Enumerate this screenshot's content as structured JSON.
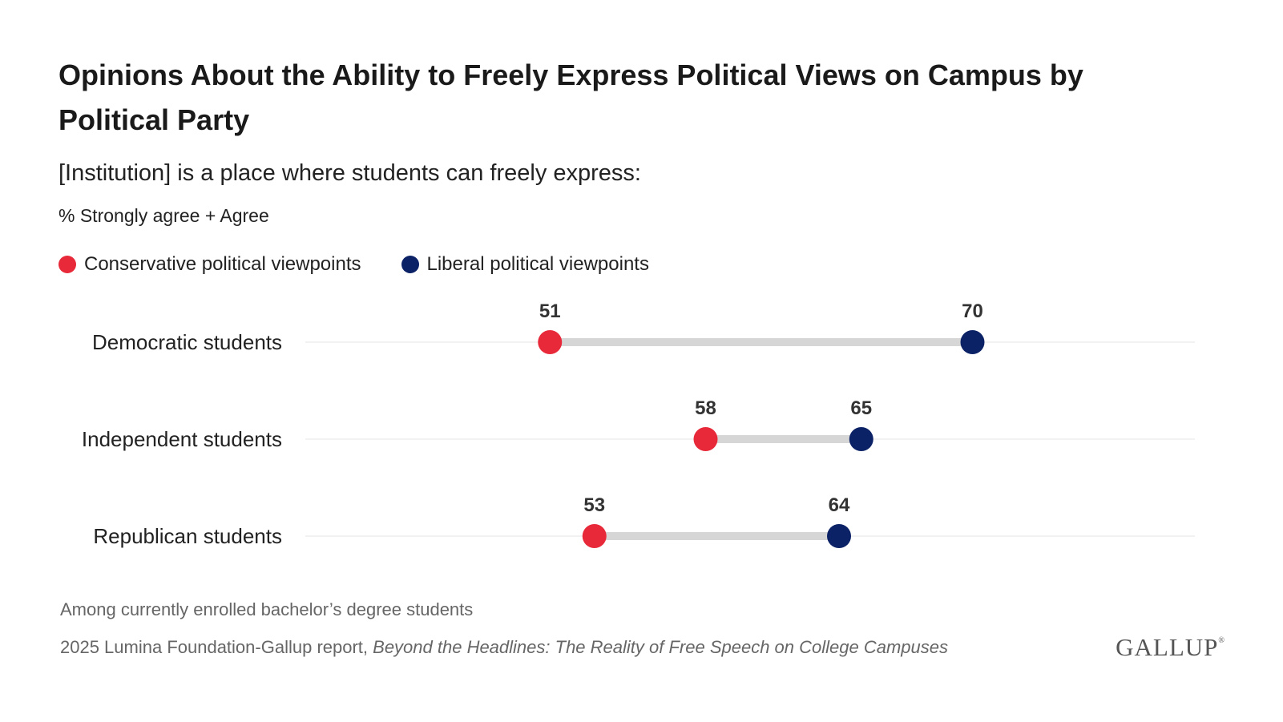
{
  "title": "Opinions About the Ability to Freely Express Political Views on Campus by Political Party",
  "subtitle": "[Institution] is a place where students can freely express:",
  "measure": "% Strongly agree + Agree",
  "legend": [
    {
      "label": "Conservative political viewpoints",
      "color": "#e8293a"
    },
    {
      "label": "Liberal political viewpoints",
      "color": "#0c2266"
    }
  ],
  "chart_data": {
    "type": "dumbbell",
    "categories": [
      "Democratic students",
      "Independent students",
      "Republican students"
    ],
    "series": [
      {
        "name": "Conservative political viewpoints",
        "color": "#e8293a",
        "values": [
          51,
          58,
          53
        ]
      },
      {
        "name": "Liberal political viewpoints",
        "color": "#0c2266",
        "values": [
          70,
          65,
          64
        ]
      }
    ],
    "xlim": [
      40,
      80
    ],
    "grid": false,
    "connector_color": "#d6d6d6"
  },
  "footer": {
    "note": "Among currently enrolled bachelor’s degree students",
    "source_prefix": "2025 Lumina Foundation-Gallup report, ",
    "source_title": "Beyond the Headlines: The Reality of Free Speech on College Campuses",
    "brand": "GALLUP",
    "brand_mark": "®"
  }
}
